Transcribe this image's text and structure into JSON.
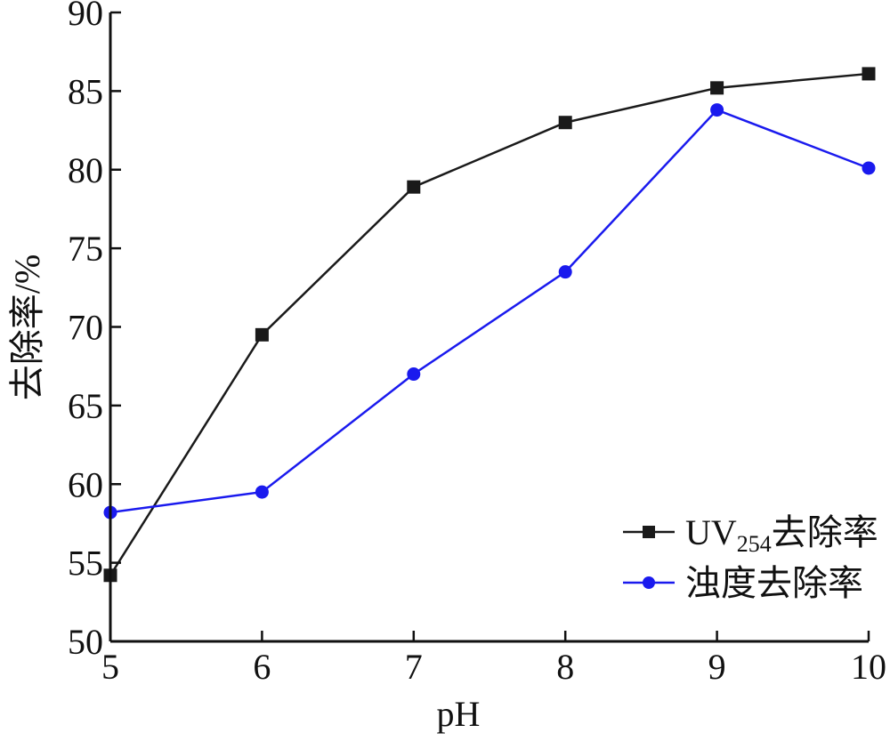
{
  "chart_data": {
    "type": "line",
    "title": "",
    "xlabel": "pH",
    "ylabel": "去除率/%",
    "x": [
      5,
      6,
      7,
      8,
      9,
      10
    ],
    "xlim": [
      5,
      10
    ],
    "ylim": [
      50,
      90
    ],
    "xticks": [
      "5",
      "6",
      "7",
      "8",
      "9",
      "10"
    ],
    "yticks": [
      "50",
      "55",
      "60",
      "65",
      "70",
      "75",
      "80",
      "85",
      "90"
    ],
    "grid": false,
    "legend_position": "bottom-right",
    "series": [
      {
        "name": "UV254去除率",
        "name_parts": {
          "base": "UV",
          "sub": "254",
          "rest": "去除率"
        },
        "marker": "square",
        "color": "#1a1a1a",
        "values": [
          54.2,
          69.5,
          78.9,
          83.0,
          85.2,
          86.1
        ]
      },
      {
        "name": "浊度去除率",
        "marker": "circle",
        "color": "#1a1aee",
        "values": [
          58.2,
          59.5,
          67.0,
          73.5,
          83.8,
          80.1
        ]
      }
    ]
  }
}
